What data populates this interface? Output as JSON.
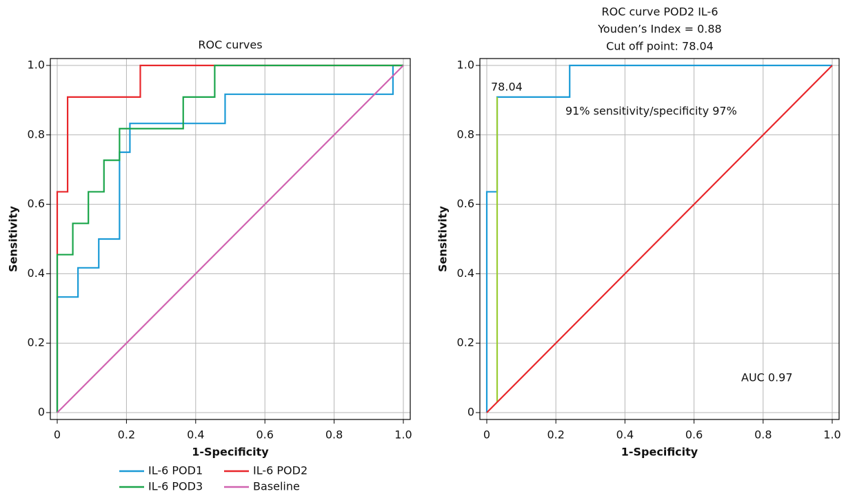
{
  "chart_data": [
    {
      "type": "line",
      "title": "ROC curves",
      "xlabel": "1-Specificity",
      "ylabel": "Sensitivity",
      "xlim": [
        0,
        1
      ],
      "ylim": [
        0,
        1
      ],
      "xticks": [
        0,
        0.2,
        0.4,
        0.6,
        0.8,
        {
          "value": 1,
          "label": "1.0"
        }
      ],
      "yticks": [
        0,
        0.2,
        0.4,
        0.6,
        0.8,
        {
          "value": 1,
          "label": "1.0"
        }
      ],
      "grid": true,
      "legend": "bottom",
      "series": [
        {
          "name": "IL-6 POD1",
          "color": "#1a9ad6",
          "x": [
            0,
            0,
            0.06,
            0.06,
            0.12,
            0.12,
            0.18,
            0.18,
            0.21,
            0.21,
            0.485,
            0.485,
            0.97,
            0.97,
            1
          ],
          "values": [
            0,
            0.333,
            0.333,
            0.417,
            0.417,
            0.5,
            0.5,
            0.75,
            0.75,
            0.833,
            0.833,
            0.917,
            0.917,
            1,
            1
          ]
        },
        {
          "name": "IL-6 POD2",
          "color": "#e8262a",
          "x": [
            0,
            0,
            0.03,
            0.03,
            0.24,
            0.24,
            1
          ],
          "values": [
            0,
            0.636,
            0.636,
            0.909,
            0.909,
            1,
            1
          ]
        },
        {
          "name": "IL-6 POD3",
          "color": "#1aa54a",
          "x": [
            0,
            0,
            0.045,
            0.045,
            0.09,
            0.09,
            0.135,
            0.135,
            0.18,
            0.18,
            0.364,
            0.364,
            0.455,
            0.455,
            1
          ],
          "values": [
            0,
            0.455,
            0.455,
            0.545,
            0.545,
            0.636,
            0.636,
            0.727,
            0.727,
            0.818,
            0.818,
            0.909,
            0.909,
            1,
            1
          ]
        },
        {
          "name": "Baseline",
          "color": "#d062b0",
          "x": [
            0,
            1
          ],
          "values": [
            0,
            1
          ]
        }
      ]
    },
    {
      "type": "line",
      "title": [
        "ROC curve POD2 IL-6",
        "Youden’s Index = 0.88",
        "Cut off point: 78.04"
      ],
      "xlabel": "1-Specificity",
      "ylabel": "Sensitivity",
      "xlim": [
        0,
        1
      ],
      "ylim": [
        0,
        1
      ],
      "xticks": [
        0,
        0.2,
        0.4,
        0.6,
        0.8,
        {
          "value": 1,
          "label": "1.0"
        }
      ],
      "yticks": [
        0,
        0.2,
        0.4,
        0.6,
        0.8,
        {
          "value": 1,
          "label": "1.0"
        }
      ],
      "grid": true,
      "annotations": [
        "78.04",
        "91% sensitivity/specificity 97%",
        "AUC 0.97"
      ],
      "series": [
        {
          "color": "#1a9ad6",
          "x": [
            0,
            0,
            0.03,
            0.03,
            0.24,
            0.24,
            1
          ],
          "values": [
            0,
            0.636,
            0.636,
            0.909,
            0.909,
            1,
            1
          ]
        },
        {
          "color": "#99cc33",
          "x": [
            0.03,
            0.03
          ],
          "values": [
            0.03,
            0.909
          ]
        },
        {
          "color": "#e8262a",
          "x": [
            0,
            1
          ],
          "values": [
            0,
            1
          ]
        }
      ]
    }
  ]
}
